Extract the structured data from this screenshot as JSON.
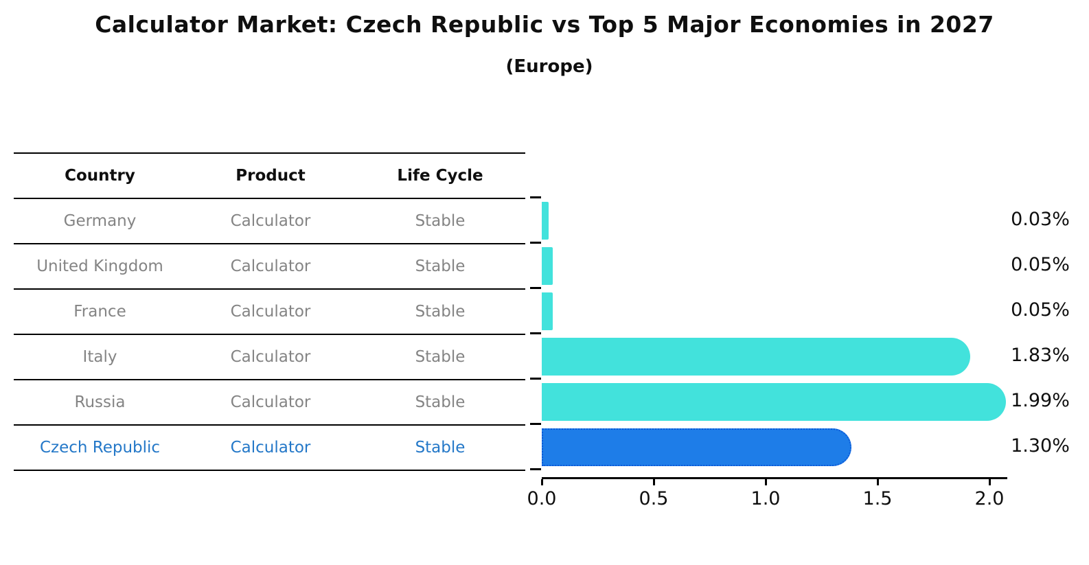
{
  "title": "Calculator Market: Czech Republic vs Top 5 Major Economies in 2027",
  "subtitle": "(Europe)",
  "table": {
    "headers": {
      "country": "Country",
      "product": "Product",
      "life_cycle": "Life Cycle"
    },
    "rows": [
      {
        "country": "Germany",
        "product": "Calculator",
        "life_cycle": "Stable",
        "highlight": false
      },
      {
        "country": "United Kingdom",
        "product": "Calculator",
        "life_cycle": "Stable",
        "highlight": false
      },
      {
        "country": "France",
        "product": "Calculator",
        "life_cycle": "Stable",
        "highlight": false
      },
      {
        "country": "Italy",
        "product": "Calculator",
        "life_cycle": "Stable",
        "highlight": false
      },
      {
        "country": "Russia",
        "product": "Calculator",
        "life_cycle": "Stable",
        "highlight": false
      },
      {
        "country": "Czech Republic",
        "product": "Calculator",
        "life_cycle": "Stable",
        "highlight": true
      }
    ]
  },
  "chart_data": {
    "type": "bar",
    "orientation": "horizontal",
    "title": "Calculator Market: Czech Republic vs Top 5 Major Economies in 2027",
    "subtitle": "(Europe)",
    "categories": [
      "Germany",
      "United Kingdom",
      "France",
      "Italy",
      "Russia",
      "Czech Republic"
    ],
    "values": [
      0.03,
      0.05,
      0.05,
      1.83,
      1.99,
      1.3
    ],
    "value_labels": [
      "0.03%",
      "0.05%",
      "0.05%",
      "1.83%",
      "1.99%",
      "1.30%"
    ],
    "xticks": [
      "0.0",
      "0.5",
      "1.0",
      "1.5",
      "2.0"
    ],
    "xtick_values": [
      0.0,
      0.5,
      1.0,
      1.5,
      2.0
    ],
    "xlim": [
      0,
      2.08
    ],
    "grid": false,
    "legend": "none",
    "bar_color": "#42E2DC",
    "highlight_index": 5,
    "highlight_color": "#1E7DE8",
    "highlight_border_color": "#0C59D8",
    "highlight_text_color": "#2478C8"
  }
}
